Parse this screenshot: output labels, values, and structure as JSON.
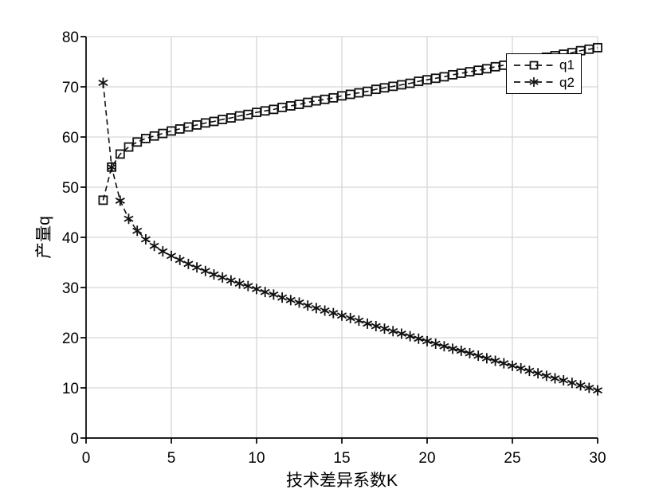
{
  "chart_data": {
    "type": "line",
    "title": "",
    "xlabel": "技术差异系数K",
    "ylabel": "产量q",
    "xlim": [
      0,
      30
    ],
    "ylim": [
      0,
      80
    ],
    "x_ticks": [
      0,
      5,
      10,
      15,
      20,
      25,
      30
    ],
    "y_ticks": [
      0,
      10,
      20,
      30,
      40,
      50,
      60,
      70,
      80
    ],
    "grid": true,
    "legend_position": "top-right",
    "x": [
      1,
      1.5,
      2,
      2.5,
      3,
      3.5,
      4,
      4.5,
      5,
      5.5,
      6,
      6.5,
      7,
      7.5,
      8,
      8.5,
      9,
      9.5,
      10,
      10.5,
      11,
      11.5,
      12,
      12.5,
      13,
      13.5,
      14,
      14.5,
      15,
      15.5,
      16,
      16.5,
      17,
      17.5,
      18,
      18.5,
      19,
      19.5,
      20,
      20.5,
      21,
      21.5,
      22,
      22.5,
      23,
      23.5,
      24,
      24.5,
      25,
      25.5,
      26,
      26.5,
      27,
      27.5,
      28,
      28.5,
      29,
      29.5,
      30
    ],
    "series": [
      {
        "name": "q1",
        "marker": "square",
        "linestyle": "dashed",
        "color": "#111111",
        "values": [
          47.4,
          54.0,
          56.6,
          58.0,
          59.0,
          59.7,
          60.2,
          60.7,
          61.2,
          61.6,
          62.0,
          62.4,
          62.8,
          63.1,
          63.5,
          63.8,
          64.2,
          64.5,
          64.9,
          65.2,
          65.5,
          65.9,
          66.2,
          66.5,
          66.9,
          67.2,
          67.5,
          67.8,
          68.2,
          68.5,
          68.8,
          69.1,
          69.5,
          69.8,
          70.1,
          70.4,
          70.7,
          71.1,
          71.4,
          71.7,
          72.0,
          72.4,
          72.7,
          73.0,
          73.3,
          73.6,
          74.0,
          74.3,
          74.6,
          74.9,
          75.2,
          75.6,
          75.9,
          76.2,
          76.5,
          76.8,
          77.2,
          77.5,
          77.8
        ]
      },
      {
        "name": "q2",
        "marker": "asterisk",
        "linestyle": "dashed",
        "color": "#111111",
        "values": [
          70.8,
          54.0,
          47.3,
          43.7,
          41.3,
          39.6,
          38.3,
          37.2,
          36.3,
          35.5,
          34.7,
          34.0,
          33.3,
          32.6,
          32.0,
          31.4,
          30.8,
          30.3,
          29.7,
          29.1,
          28.6,
          28.0,
          27.5,
          27.0,
          26.4,
          25.9,
          25.4,
          24.9,
          24.4,
          23.9,
          23.4,
          22.8,
          22.3,
          21.8,
          21.3,
          20.8,
          20.3,
          19.8,
          19.3,
          18.8,
          18.3,
          17.8,
          17.4,
          16.9,
          16.4,
          15.9,
          15.4,
          14.9,
          14.4,
          13.9,
          13.4,
          12.9,
          12.4,
          11.9,
          11.5,
          11.0,
          10.5,
          10.0,
          9.5
        ]
      }
    ]
  },
  "colors": {
    "series": "#111111",
    "grid": "#d6d6d6",
    "axis": "#000000",
    "background": "#ffffff",
    "legend_border": "#000000"
  }
}
